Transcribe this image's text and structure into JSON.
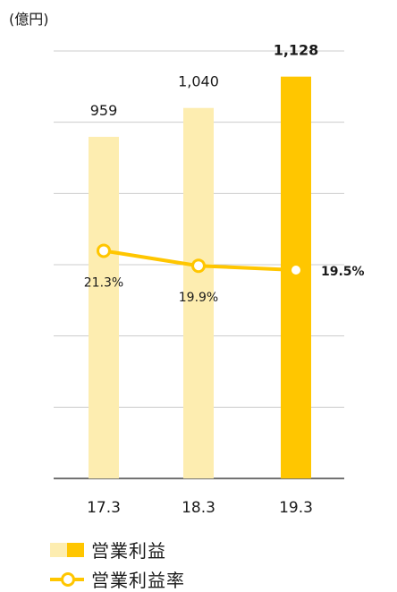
{
  "unit_label": "(億円)",
  "colors": {
    "bar_light": "#FDEDB0",
    "bar_highlight": "#FFC600",
    "line": "#FFC600",
    "grid": "#cccccc",
    "axis": "#444444"
  },
  "chart_data": {
    "type": "bar",
    "categories": [
      "17.3",
      "18.3",
      "19.3"
    ],
    "ylim": [
      0,
      1200
    ],
    "grid": true,
    "series": [
      {
        "name": "営業利益",
        "type": "bar",
        "values": [
          959,
          1040,
          1128
        ],
        "labels": [
          "959",
          "1,040",
          "1,128"
        ],
        "highlight_index": 2
      },
      {
        "name": "営業利益率",
        "type": "line",
        "values": [
          21.3,
          19.9,
          19.5
        ],
        "labels": [
          "21.3%",
          "19.9%",
          "19.5%"
        ],
        "unit": "%",
        "axis_range": [
          0,
          40
        ]
      }
    ]
  },
  "legend": {
    "bar_label": "営業利益",
    "line_label": "営業利益率"
  }
}
